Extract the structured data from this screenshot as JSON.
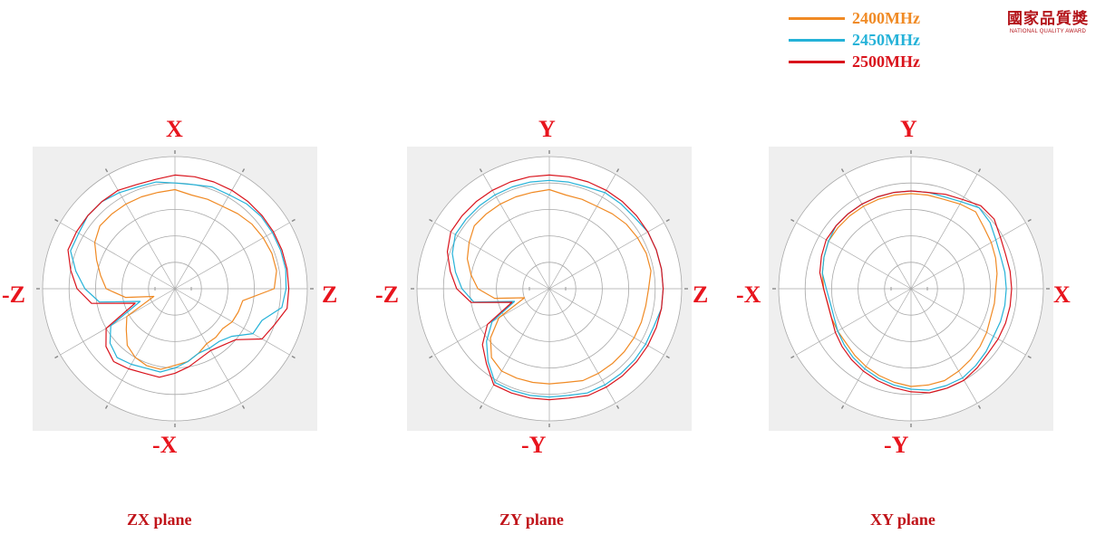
{
  "legend": [
    {
      "label": "2400MHz",
      "color": "#f08a24"
    },
    {
      "label": "2450MHz",
      "color": "#25b2d8"
    },
    {
      "label": "2500MHz",
      "color": "#d9131c"
    }
  ],
  "logo": {
    "cn": "國家品質獎",
    "en": "NATIONAL QUALITY AWARD"
  },
  "colors": {
    "background": "#efefef",
    "grid": "#a8a8a8",
    "axis_label": "#e8141d",
    "plane_label": "#c0141a"
  },
  "chart_data": [
    {
      "type": "polar",
      "title": "ZX plane",
      "direction_labels": {
        "top": "X",
        "right": "Z",
        "bottom": "-X",
        "left": "-Z"
      },
      "angle_step_deg": 30,
      "rings": 5,
      "radial_scale": "normalized",
      "series": [
        {
          "name": "2400MHz",
          "color": "#f08a24",
          "r": [
            0.75,
            0.72,
            0.72,
            0.72,
            0.74,
            0.76,
            0.77,
            0.78,
            0.78,
            0.75,
            0.52,
            0.51,
            0.5,
            0.47,
            0.48,
            0.48,
            0.52,
            0.56,
            0.58,
            0.62,
            0.62,
            0.6,
            0.56,
            0.48,
            0.42,
            0.17,
            0.38,
            0.52,
            0.57,
            0.63,
            0.7,
            0.74,
            0.74,
            0.74,
            0.74,
            0.74
          ]
        },
        {
          "name": "2450MHz",
          "color": "#25b2d8",
          "r": [
            0.8,
            0.8,
            0.82,
            0.82,
            0.84,
            0.85,
            0.85,
            0.85,
            0.85,
            0.84,
            0.82,
            0.7,
            0.68,
            0.56,
            0.52,
            0.52,
            0.52,
            0.56,
            0.6,
            0.64,
            0.64,
            0.66,
            0.68,
            0.64,
            0.56,
            0.28,
            0.58,
            0.68,
            0.76,
            0.84,
            0.84,
            0.86,
            0.86,
            0.84,
            0.82,
            0.82
          ]
        },
        {
          "name": "2500MHz",
          "color": "#d9131c",
          "r": [
            0.86,
            0.86,
            0.86,
            0.86,
            0.86,
            0.86,
            0.86,
            0.86,
            0.86,
            0.86,
            0.86,
            0.8,
            0.76,
            0.6,
            0.56,
            0.54,
            0.56,
            0.6,
            0.64,
            0.68,
            0.68,
            0.7,
            0.72,
            0.68,
            0.6,
            0.32,
            0.64,
            0.74,
            0.8,
            0.86,
            0.86,
            0.86,
            0.86,
            0.86,
            0.84,
            0.84
          ]
        }
      ]
    },
    {
      "type": "polar",
      "title": "ZY plane",
      "direction_labels": {
        "top": "Y",
        "right": "Z",
        "bottom": "-Y",
        "left": "-Z"
      },
      "angle_step_deg": 30,
      "rings": 5,
      "radial_scale": "normalized",
      "series": [
        {
          "name": "2400MHz",
          "color": "#f08a24",
          "r": [
            0.75,
            0.72,
            0.72,
            0.72,
            0.74,
            0.76,
            0.77,
            0.78,
            0.78,
            0.75,
            0.74,
            0.74,
            0.74,
            0.74,
            0.74,
            0.74,
            0.74,
            0.72,
            0.72,
            0.72,
            0.72,
            0.72,
            0.68,
            0.58,
            0.44,
            0.2,
            0.42,
            0.54,
            0.6,
            0.66,
            0.7,
            0.74,
            0.74,
            0.74,
            0.74,
            0.74
          ]
        },
        {
          "name": "2450MHz",
          "color": "#25b2d8",
          "r": [
            0.82,
            0.82,
            0.82,
            0.84,
            0.84,
            0.84,
            0.86,
            0.86,
            0.86,
            0.86,
            0.86,
            0.84,
            0.84,
            0.84,
            0.84,
            0.84,
            0.84,
            0.82,
            0.82,
            0.82,
            0.82,
            0.82,
            0.72,
            0.62,
            0.5,
            0.28,
            0.58,
            0.66,
            0.72,
            0.78,
            0.82,
            0.82,
            0.82,
            0.82,
            0.82,
            0.82
          ]
        },
        {
          "name": "2500MHz",
          "color": "#d9131c",
          "r": [
            0.86,
            0.86,
            0.86,
            0.86,
            0.86,
            0.86,
            0.86,
            0.86,
            0.86,
            0.86,
            0.86,
            0.86,
            0.86,
            0.86,
            0.86,
            0.86,
            0.86,
            0.84,
            0.84,
            0.84,
            0.84,
            0.84,
            0.74,
            0.66,
            0.54,
            0.3,
            0.6,
            0.7,
            0.76,
            0.82,
            0.86,
            0.86,
            0.86,
            0.86,
            0.86,
            0.86
          ]
        }
      ]
    },
    {
      "type": "polar",
      "title": "XY plane",
      "direction_labels": {
        "top": "Y",
        "right": "X",
        "bottom": "-Y",
        "left": "-X"
      },
      "angle_step_deg": 30,
      "rings": 5,
      "radial_scale": "normalized",
      "series": [
        {
          "name": "2400MHz",
          "color": "#f08a24",
          "r": [
            0.72,
            0.72,
            0.72,
            0.74,
            0.76,
            0.72,
            0.7,
            0.68,
            0.66,
            0.64,
            0.64,
            0.64,
            0.66,
            0.68,
            0.7,
            0.72,
            0.74,
            0.74,
            0.74,
            0.72,
            0.7,
            0.68,
            0.66,
            0.64,
            0.64,
            0.64,
            0.64,
            0.66,
            0.68,
            0.7,
            0.72,
            0.72,
            0.72,
            0.72,
            0.72,
            0.72
          ]
        },
        {
          "name": "2450MHz",
          "color": "#25b2d8",
          "r": [
            0.74,
            0.74,
            0.74,
            0.76,
            0.8,
            0.78,
            0.74,
            0.72,
            0.72,
            0.72,
            0.72,
            0.72,
            0.72,
            0.74,
            0.76,
            0.78,
            0.78,
            0.78,
            0.76,
            0.74,
            0.72,
            0.7,
            0.68,
            0.66,
            0.64,
            0.62,
            0.62,
            0.64,
            0.68,
            0.7,
            0.72,
            0.74,
            0.74,
            0.74,
            0.74,
            0.74
          ]
        },
        {
          "name": "2500MHz",
          "color": "#d9131c",
          "r": [
            0.74,
            0.74,
            0.76,
            0.78,
            0.82,
            0.82,
            0.78,
            0.76,
            0.76,
            0.76,
            0.76,
            0.76,
            0.76,
            0.76,
            0.78,
            0.8,
            0.8,
            0.8,
            0.78,
            0.76,
            0.74,
            0.72,
            0.7,
            0.68,
            0.66,
            0.64,
            0.64,
            0.66,
            0.7,
            0.72,
            0.74,
            0.74,
            0.74,
            0.74,
            0.74,
            0.74
          ]
        }
      ]
    }
  ]
}
